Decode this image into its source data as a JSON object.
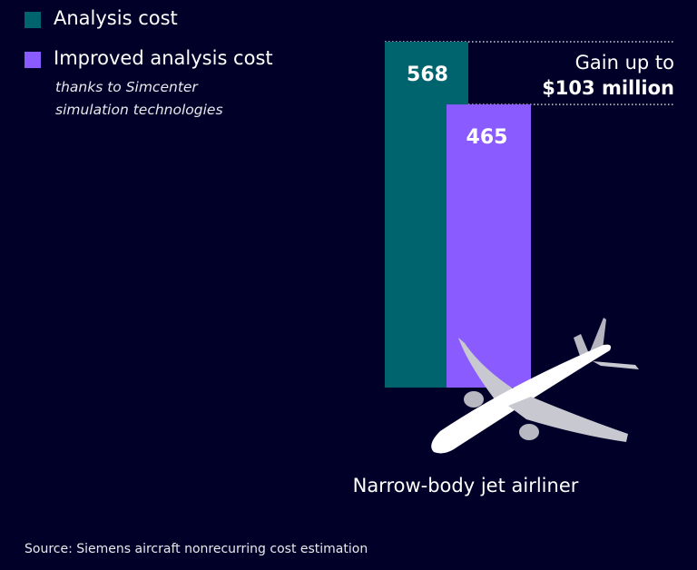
{
  "chart_data": {
    "type": "bar",
    "categories": [
      "Narrow-body jet airliner"
    ],
    "series": [
      {
        "name": "Analysis cost",
        "values": [
          568
        ],
        "color": "#00646e"
      },
      {
        "name": "Improved analysis cost",
        "values": [
          465
        ],
        "color": "#8a5cff"
      }
    ],
    "legend_note": "thanks to Simcenter simulation technologies",
    "annotation": {
      "line1": "Gain up to",
      "line2": "$103 million"
    },
    "ylim": [
      0,
      568
    ],
    "grid": false,
    "legend_placement": "top-left",
    "source": "Source: Siemens aircraft nonrecurring cost estimation"
  },
  "colors": {
    "background": "#000028",
    "text": "#ffffff"
  },
  "icons": {
    "illustration": "airplane-icon"
  }
}
